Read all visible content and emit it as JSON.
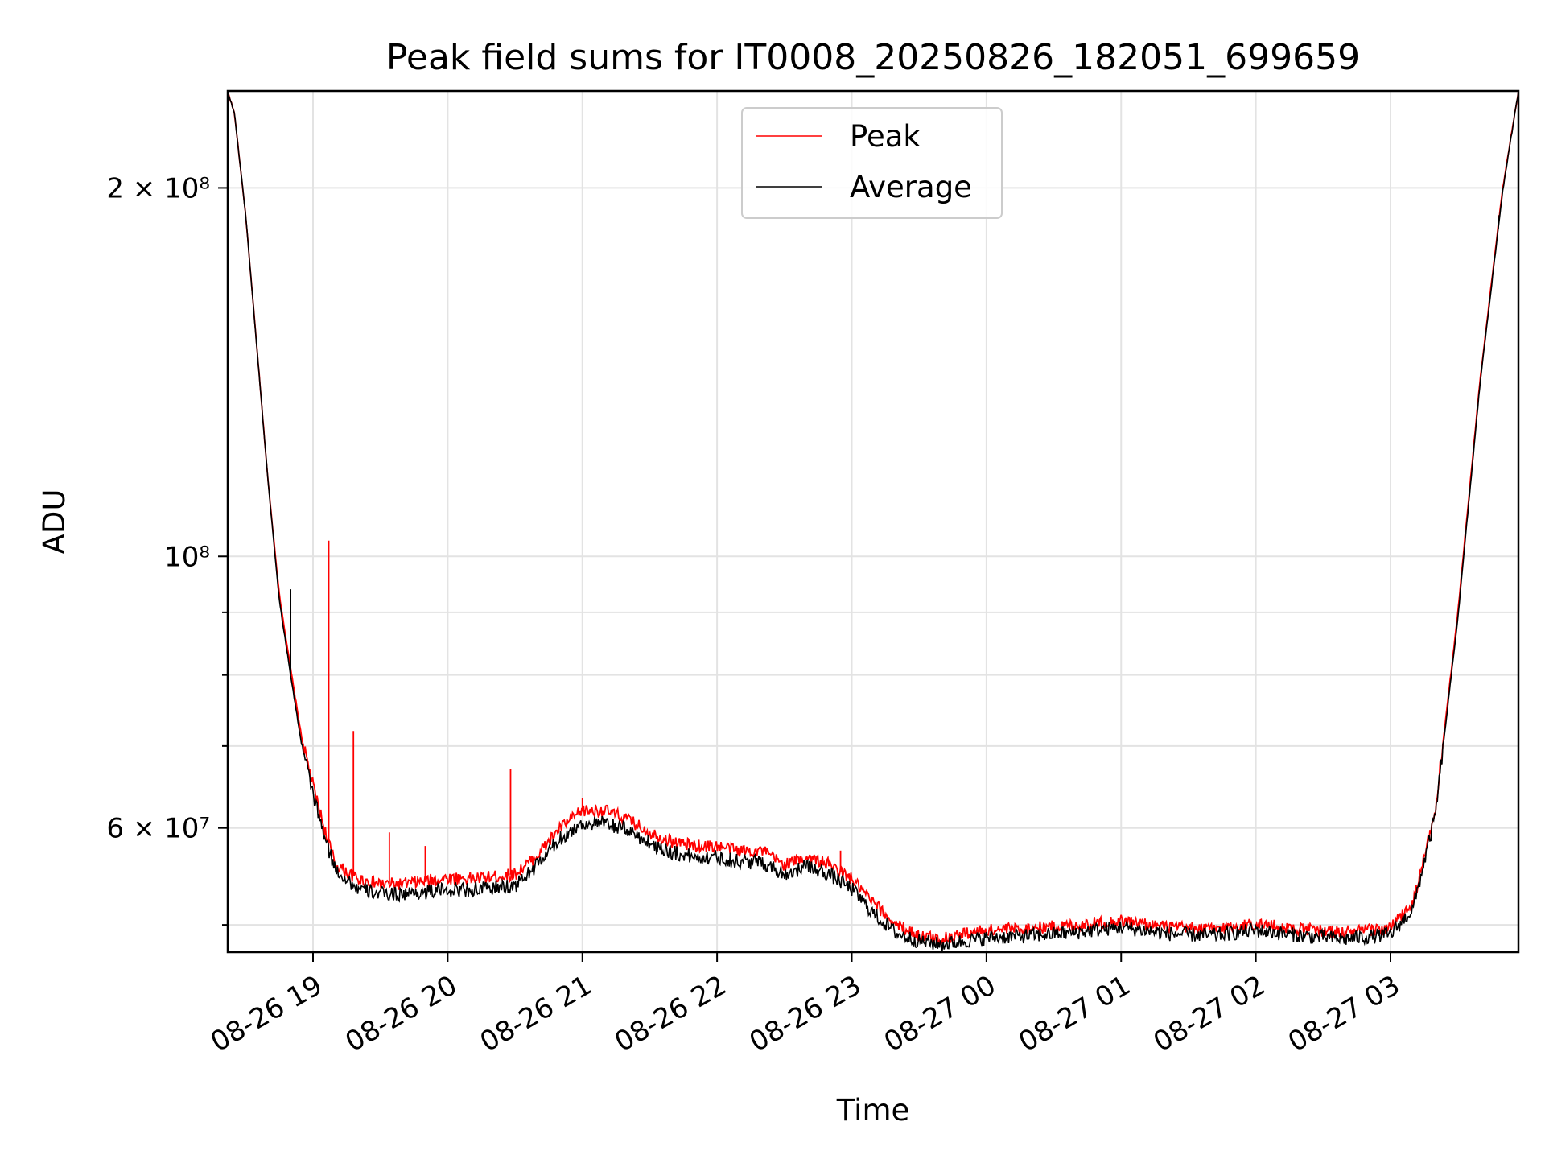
{
  "chart_data": {
    "type": "line",
    "title": "Peak field sums for IT0008_20250826_182051_699659",
    "xlabel": "Time",
    "ylabel": "ADU",
    "yscale": "log",
    "grid": true,
    "legend_position": "top-center",
    "x_ticks": [
      "08-26 19",
      "08-26 20",
      "08-26 21",
      "08-26 22",
      "08-26 23",
      "08-27 00",
      "08-27 01",
      "08-27 02",
      "08-27 03"
    ],
    "y_tick_labels": [
      {
        "value": 200000000,
        "label": "2 × 10⁸"
      },
      {
        "value": 100000000,
        "label": "10⁸"
      },
      {
        "value": 60000000,
        "label": "6 × 10⁷"
      }
    ],
    "y_minor_ticks": [
      50000000,
      70000000,
      80000000,
      90000000
    ],
    "xlim": [
      "2025-08-26 18:22",
      "2025-08-27 03:57"
    ],
    "ylim": [
      47500000,
      240000000
    ],
    "series": [
      {
        "name": "Peak",
        "color": "#ff0000",
        "x": [
          "2025-08-26 18:22",
          "2025-08-26 18:25",
          "2025-08-26 18:30",
          "2025-08-26 18:35",
          "2025-08-26 18:40",
          "2025-08-26 18:45",
          "2025-08-26 18:50",
          "2025-08-26 18:55",
          "2025-08-26 19:00",
          "2025-08-26 19:05",
          "2025-08-26 19:10",
          "2025-08-26 19:20",
          "2025-08-26 19:30",
          "2025-08-26 19:40",
          "2025-08-26 19:50",
          "2025-08-26 20:00",
          "2025-08-26 20:15",
          "2025-08-26 20:30",
          "2025-08-26 20:40",
          "2025-08-26 20:50",
          "2025-08-26 21:00",
          "2025-08-26 21:10",
          "2025-08-26 21:20",
          "2025-08-26 21:30",
          "2025-08-26 21:40",
          "2025-08-26 21:50",
          "2025-08-26 22:00",
          "2025-08-26 22:10",
          "2025-08-26 22:20",
          "2025-08-26 22:30",
          "2025-08-26 22:40",
          "2025-08-26 22:50",
          "2025-08-26 23:00",
          "2025-08-26 23:10",
          "2025-08-26 23:20",
          "2025-08-26 23:30",
          "2025-08-26 23:40",
          "2025-08-26 23:50",
          "2025-08-27 00:00",
          "2025-08-27 00:20",
          "2025-08-27 00:40",
          "2025-08-27 01:00",
          "2025-08-27 01:20",
          "2025-08-27 01:40",
          "2025-08-27 02:00",
          "2025-08-27 02:20",
          "2025-08-27 02:40",
          "2025-08-27 03:00",
          "2025-08-27 03:10",
          "2025-08-27 03:20",
          "2025-08-27 03:30",
          "2025-08-27 03:40",
          "2025-08-27 03:50",
          "2025-08-27 03:57"
        ],
        "values": [
          240000000,
          230000000,
          190000000,
          148000000,
          115000000,
          93000000,
          81000000,
          71000000,
          65000000,
          60000000,
          56000000,
          54500000,
          54000000,
          54000000,
          54300000,
          54600000,
          54600000,
          55000000,
          57000000,
          60000000,
          62000000,
          62000000,
          61000000,
          59500000,
          58500000,
          58000000,
          58000000,
          57500000,
          57500000,
          56000000,
          56800000,
          56000000,
          54500000,
          52000000,
          50000000,
          49000000,
          48700000,
          49200000,
          49500000,
          49700000,
          50000000,
          50400000,
          49800000,
          49600000,
          50100000,
          49600000,
          49300000,
          49700000,
          52000000,
          62000000,
          90000000,
          140000000,
          200000000,
          240000000
        ],
        "spikes": [
          {
            "x": "2025-08-26 19:07",
            "value": 103000000
          },
          {
            "x": "2025-08-26 19:18",
            "value": 72000000
          },
          {
            "x": "2025-08-26 19:34",
            "value": 59500000
          },
          {
            "x": "2025-08-26 19:50",
            "value": 58000000
          },
          {
            "x": "2025-08-26 20:28",
            "value": 67000000
          },
          {
            "x": "2025-08-26 21:00",
            "value": 63500000
          },
          {
            "x": "2025-08-26 22:55",
            "value": 57500000
          }
        ]
      },
      {
        "name": "Average",
        "color": "#000000",
        "x": [
          "2025-08-26 18:22",
          "2025-08-26 18:25",
          "2025-08-26 18:30",
          "2025-08-26 18:35",
          "2025-08-26 18:40",
          "2025-08-26 18:45",
          "2025-08-26 18:50",
          "2025-08-26 18:55",
          "2025-08-26 19:00",
          "2025-08-26 19:05",
          "2025-08-26 19:10",
          "2025-08-26 19:20",
          "2025-08-26 19:30",
          "2025-08-26 19:40",
          "2025-08-26 19:50",
          "2025-08-26 20:00",
          "2025-08-26 20:15",
          "2025-08-26 20:30",
          "2025-08-26 20:40",
          "2025-08-26 20:50",
          "2025-08-26 21:00",
          "2025-08-26 21:10",
          "2025-08-26 21:20",
          "2025-08-26 21:30",
          "2025-08-26 21:40",
          "2025-08-26 21:50",
          "2025-08-26 22:00",
          "2025-08-26 22:10",
          "2025-08-26 22:20",
          "2025-08-26 22:30",
          "2025-08-26 22:40",
          "2025-08-26 22:50",
          "2025-08-26 23:00",
          "2025-08-26 23:10",
          "2025-08-26 23:20",
          "2025-08-26 23:30",
          "2025-08-26 23:40",
          "2025-08-26 23:50",
          "2025-08-27 00:00",
          "2025-08-27 00:20",
          "2025-08-27 00:40",
          "2025-08-27 01:00",
          "2025-08-27 01:20",
          "2025-08-27 01:40",
          "2025-08-27 02:00",
          "2025-08-27 02:20",
          "2025-08-27 02:40",
          "2025-08-27 03:00",
          "2025-08-27 03:10",
          "2025-08-27 03:20",
          "2025-08-27 03:30",
          "2025-08-27 03:40",
          "2025-08-27 03:50",
          "2025-08-27 03:57"
        ],
        "values": [
          240000000,
          230000000,
          190000000,
          148000000,
          115000000,
          92000000,
          80000000,
          70000000,
          64000000,
          59000000,
          55500000,
          53500000,
          53000000,
          53000000,
          53200000,
          53400000,
          53500000,
          53800000,
          56000000,
          58800000,
          60500000,
          60500000,
          59800000,
          58300000,
          57300000,
          56800000,
          56800000,
          56300000,
          56300000,
          55000000,
          55800000,
          55000000,
          53500000,
          51000000,
          49200000,
          48500000,
          48200000,
          48500000,
          48800000,
          49000000,
          49300000,
          49800000,
          49200000,
          49000000,
          49500000,
          49000000,
          48700000,
          49100000,
          51500000,
          61500000,
          89000000,
          139000000,
          199000000,
          240000000
        ],
        "spikes": [
          {
            "x": "2025-08-26 18:50",
            "value": 94000000
          },
          {
            "x": "2025-08-27 03:48",
            "value": 190000000
          }
        ]
      }
    ]
  }
}
